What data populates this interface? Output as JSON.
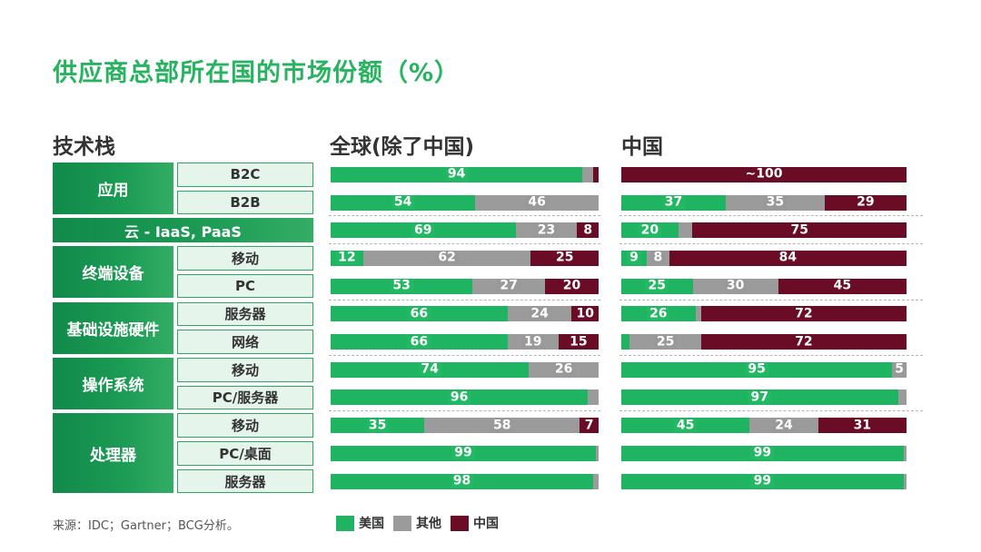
{
  "title": "供应商总部所在国的市场份额（%）",
  "headers": {
    "tech": "技术栈",
    "global": "全球(除了中国)",
    "china": "中国"
  },
  "source": "来源：IDC；Gartner；BCG分析。",
  "colors": {
    "us": "#1fb462",
    "other": "#9b9b9b",
    "cn": "#6b0c27"
  },
  "legend": [
    {
      "key": "us",
      "label": "美国"
    },
    {
      "key": "other",
      "label": "其他"
    },
    {
      "key": "cn",
      "label": "中国"
    }
  ],
  "chart_data": {
    "type": "bar",
    "orientation": "horizontal",
    "stacked": true,
    "xlim": [
      0,
      100
    ],
    "groups": [
      {
        "label": "应用",
        "rows": [
          {
            "label": "B2C",
            "global": [
              94,
              4,
              2
            ],
            "global_labels": [
              "94",
              "",
              ""
            ],
            "china": [
              0,
              0,
              100
            ],
            "china_labels": [
              "",
              "",
              "~100"
            ]
          },
          {
            "label": "B2B",
            "global": [
              54,
              46,
              0
            ],
            "global_labels": [
              "54",
              "46",
              ""
            ],
            "china": [
              37,
              35,
              29
            ],
            "china_labels": [
              "37",
              "35",
              "29"
            ]
          }
        ]
      },
      {
        "label": "云 - IaaS, PaaS",
        "single": true,
        "rows": [
          {
            "label": "云 - IaaS, PaaS",
            "global": [
              69,
              23,
              8
            ],
            "global_labels": [
              "69",
              "23",
              "8"
            ],
            "china": [
              20,
              5,
              75
            ],
            "china_labels": [
              "20",
              "",
              "75"
            ]
          }
        ]
      },
      {
        "label": "终端设备",
        "rows": [
          {
            "label": "移动",
            "global": [
              12,
              62,
              25
            ],
            "global_labels": [
              "12",
              "62",
              "25"
            ],
            "china": [
              9,
              8,
              84
            ],
            "china_labels": [
              "9",
              "8",
              "84"
            ]
          },
          {
            "label": "PC",
            "global": [
              53,
              27,
              20
            ],
            "global_labels": [
              "53",
              "27",
              "20"
            ],
            "china": [
              25,
              30,
              45
            ],
            "china_labels": [
              "25",
              "30",
              "45"
            ]
          }
        ]
      },
      {
        "label": "基础设施硬件",
        "rows": [
          {
            "label": "服务器",
            "global": [
              66,
              24,
              10
            ],
            "global_labels": [
              "66",
              "24",
              "10"
            ],
            "china": [
              26,
              2,
              72
            ],
            "china_labels": [
              "26",
              "",
              "72"
            ]
          },
          {
            "label": "网络",
            "global": [
              66,
              19,
              15
            ],
            "global_labels": [
              "66",
              "19",
              "15"
            ],
            "china": [
              3,
              25,
              72
            ],
            "china_labels": [
              "",
              "25",
              "72"
            ]
          }
        ]
      },
      {
        "label": "操作系统",
        "rows": [
          {
            "label": "移动",
            "global": [
              74,
              26,
              0
            ],
            "global_labels": [
              "74",
              "26",
              ""
            ],
            "china": [
              95,
              5,
              0
            ],
            "china_labels": [
              "95",
              "5",
              ""
            ]
          },
          {
            "label": "PC/服务器",
            "global": [
              96,
              4,
              0
            ],
            "global_labels": [
              "96",
              "",
              ""
            ],
            "china": [
              97,
              3,
              0
            ],
            "china_labels": [
              "97",
              "",
              ""
            ]
          }
        ]
      },
      {
        "label": "处理器",
        "rows": [
          {
            "label": "移动",
            "global": [
              35,
              58,
              7
            ],
            "global_labels": [
              "35",
              "58",
              "7"
            ],
            "china": [
              45,
              24,
              31
            ],
            "china_labels": [
              "45",
              "24",
              "31"
            ]
          },
          {
            "label": "PC/桌面",
            "global": [
              99,
              1,
              0
            ],
            "global_labels": [
              "99",
              "",
              ""
            ],
            "china": [
              99,
              1,
              0
            ],
            "china_labels": [
              "99",
              "",
              ""
            ]
          },
          {
            "label": "服务器",
            "global": [
              98,
              2,
              0
            ],
            "global_labels": [
              "98",
              "",
              ""
            ],
            "china": [
              99,
              1,
              0
            ],
            "china_labels": [
              "99",
              "",
              ""
            ]
          }
        ]
      }
    ]
  }
}
